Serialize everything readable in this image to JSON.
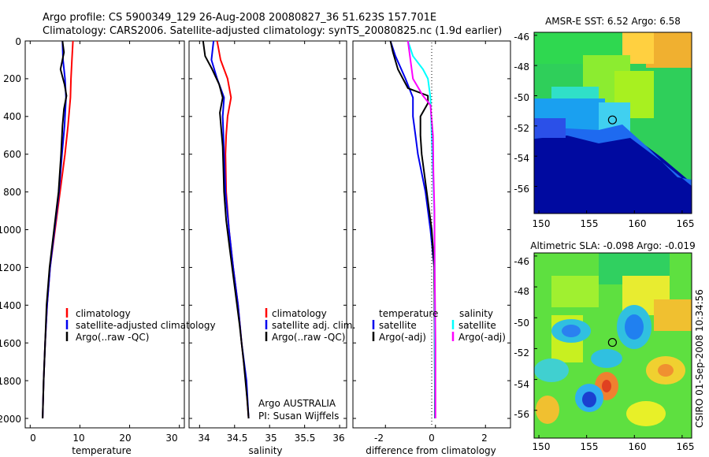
{
  "header": {
    "line1": "Argo profile: CS 5900349_129 26-Aug-2008 20080827_36 51.623S 157.701E",
    "line2": "Climatology: CARS2006. Satellite-adjusted climatology: synTS_20080825.nc (1.9d earlier)"
  },
  "footer_stamp": "CSIRO 01-Sep-2008 10:34:56",
  "colors": {
    "red": "#ff0000",
    "blue": "#0000ee",
    "black": "#000000",
    "cyan": "#00ffff",
    "magenta": "#ff00ff"
  },
  "chart_data": [
    {
      "type": "line",
      "xlabel": "temperature",
      "xlim": [
        -1,
        31
      ],
      "ylim": [
        2050,
        0
      ],
      "xticks": [
        "0",
        "10",
        "20",
        "30"
      ],
      "yticks": [
        "0",
        "200",
        "400",
        "600",
        "800",
        "1000",
        "1200",
        "1400",
        "1600",
        "1800",
        "2000"
      ],
      "legend": [
        "climatology",
        "satellite-adjusted climatology",
        "Argo(..raw -QC)"
      ],
      "series": [
        {
          "name": "climatology",
          "color": "red",
          "points": [
            [
              8.6,
              0
            ],
            [
              8.4,
              100
            ],
            [
              8.2,
              200
            ],
            [
              8.1,
              300
            ],
            [
              7.6,
              450
            ],
            [
              7.0,
              600
            ],
            [
              6.0,
              800
            ],
            [
              5.0,
              1000
            ],
            [
              4.0,
              1200
            ],
            [
              3.4,
              1400
            ],
            [
              3.0,
              1600
            ],
            [
              2.7,
              1800
            ],
            [
              2.5,
              2000
            ]
          ]
        },
        {
          "name": "satellite-adjusted climatology",
          "color": "blue",
          "points": [
            [
              6.5,
              0
            ],
            [
              6.6,
              100
            ],
            [
              7.0,
              200
            ],
            [
              7.2,
              300
            ],
            [
              6.9,
              450
            ],
            [
              6.4,
              600
            ],
            [
              5.8,
              800
            ],
            [
              4.9,
              1000
            ],
            [
              4.0,
              1200
            ],
            [
              3.4,
              1400
            ],
            [
              3.0,
              1600
            ],
            [
              2.7,
              1800
            ],
            [
              2.5,
              2000
            ]
          ]
        },
        {
          "name": "Argo(..raw -QC)",
          "color": "black",
          "points": [
            [
              6.5,
              0
            ],
            [
              6.8,
              60
            ],
            [
              6.1,
              150
            ],
            [
              6.9,
              230
            ],
            [
              7.3,
              290
            ],
            [
              6.8,
              360
            ],
            [
              6.5,
              450
            ],
            [
              6.2,
              600
            ],
            [
              5.7,
              800
            ],
            [
              4.8,
              1000
            ],
            [
              3.9,
              1200
            ],
            [
              3.3,
              1400
            ],
            [
              3.0,
              1600
            ],
            [
              2.7,
              1800
            ],
            [
              2.5,
              2000
            ]
          ]
        }
      ]
    },
    {
      "type": "line",
      "xlabel": "salinity",
      "xlim": [
        33.85,
        36.1
      ],
      "ylim": [
        2050,
        0
      ],
      "xticks": [
        "34",
        "34.5",
        "35",
        "35.5",
        "36"
      ],
      "legend": [
        "climatology",
        "satellite adj. clim.",
        "Argo(..raw -QC)"
      ],
      "annotation": [
        "Argo AUSTRALIA",
        "PI: Susan Wijffels"
      ],
      "series": [
        {
          "name": "climatology",
          "color": "red",
          "points": [
            [
              34.25,
              0
            ],
            [
              34.3,
              100
            ],
            [
              34.4,
              200
            ],
            [
              34.45,
              300
            ],
            [
              34.4,
              400
            ],
            [
              34.38,
              500
            ],
            [
              34.37,
              600
            ],
            [
              34.38,
              800
            ],
            [
              34.42,
              1000
            ],
            [
              34.48,
              1200
            ],
            [
              34.55,
              1400
            ],
            [
              34.6,
              1600
            ],
            [
              34.66,
              1800
            ],
            [
              34.7,
              2000
            ]
          ]
        },
        {
          "name": "satellite adj. clim.",
          "color": "blue",
          "points": [
            [
              34.2,
              0
            ],
            [
              34.17,
              100
            ],
            [
              34.25,
              200
            ],
            [
              34.35,
              300
            ],
            [
              34.33,
              400
            ],
            [
              34.34,
              500
            ],
            [
              34.35,
              600
            ],
            [
              34.37,
              800
            ],
            [
              34.42,
              1000
            ],
            [
              34.48,
              1200
            ],
            [
              34.55,
              1400
            ],
            [
              34.6,
              1600
            ],
            [
              34.67,
              1800
            ],
            [
              34.7,
              2000
            ]
          ]
        },
        {
          "name": "Argo(..raw -QC)",
          "color": "black",
          "points": [
            [
              34.05,
              0
            ],
            [
              34.08,
              80
            ],
            [
              34.18,
              150
            ],
            [
              34.28,
              230
            ],
            [
              34.33,
              300
            ],
            [
              34.29,
              380
            ],
            [
              34.31,
              470
            ],
            [
              34.33,
              560
            ],
            [
              34.34,
              680
            ],
            [
              34.35,
              800
            ],
            [
              34.38,
              950
            ],
            [
              34.43,
              1100
            ],
            [
              34.5,
              1300
            ],
            [
              34.57,
              1500
            ],
            [
              34.63,
              1700
            ],
            [
              34.68,
              1900
            ],
            [
              34.7,
              2000
            ]
          ]
        }
      ]
    },
    {
      "type": "line",
      "xlabel": "difference from climatology",
      "xlim": [
        -3.3,
        3.0
      ],
      "ylim": [
        2050,
        0
      ],
      "xticks": [
        "-2",
        "0",
        "2"
      ],
      "legend_temperature_title": "temperature",
      "legend_salinity_title": "salinity",
      "legend_temperature": [
        "satellite",
        "Argo(-adj)"
      ],
      "legend_salinity": [
        "satellite",
        "Argo(-adj)"
      ],
      "series": [
        {
          "name": "temperature satellite",
          "color": "blue",
          "points": [
            [
              -1.8,
              0
            ],
            [
              -1.6,
              80
            ],
            [
              -1.2,
              200
            ],
            [
              -0.9,
              300
            ],
            [
              -0.9,
              400
            ],
            [
              -0.8,
              500
            ],
            [
              -0.7,
              600
            ],
            [
              -0.4,
              800
            ],
            [
              -0.2,
              1000
            ],
            [
              -0.05,
              1200
            ],
            [
              -0.03,
              1500
            ],
            [
              -0.02,
              2000
            ]
          ]
        },
        {
          "name": "temperature Argo(-adj)",
          "color": "black",
          "points": [
            [
              -1.8,
              0
            ],
            [
              -1.7,
              60
            ],
            [
              -1.5,
              150
            ],
            [
              -1.1,
              250
            ],
            [
              -0.3,
              290
            ],
            [
              -0.3,
              330
            ],
            [
              -0.6,
              400
            ],
            [
              -0.6,
              500
            ],
            [
              -0.55,
              600
            ],
            [
              -0.35,
              800
            ],
            [
              -0.15,
              1000
            ],
            [
              -0.05,
              1200
            ],
            [
              -0.03,
              1500
            ],
            [
              -0.02,
              2000
            ]
          ]
        },
        {
          "name": "salinity satellite",
          "color": "cyan",
          "points": [
            [
              -1.1,
              0
            ],
            [
              -0.9,
              80
            ],
            [
              -0.5,
              150
            ],
            [
              -0.3,
              200
            ],
            [
              -0.2,
              300
            ],
            [
              -0.15,
              500
            ],
            [
              -0.1,
              700
            ],
            [
              -0.05,
              900
            ],
            [
              -0.03,
              1200
            ],
            [
              -0.02,
              1600
            ],
            [
              -0.01,
              2000
            ]
          ]
        },
        {
          "name": "salinity Argo(-adj)",
          "color": "magenta",
          "points": [
            [
              -1.1,
              0
            ],
            [
              -1.0,
              100
            ],
            [
              -0.9,
              200
            ],
            [
              -0.5,
              290
            ],
            [
              -0.2,
              340
            ],
            [
              -0.1,
              500
            ],
            [
              -0.08,
              700
            ],
            [
              -0.04,
              900
            ],
            [
              -0.03,
              1200
            ],
            [
              0.0,
              1600
            ],
            [
              0.0,
              2000
            ]
          ]
        }
      ]
    },
    {
      "type": "heatmap",
      "title": "AMSR-E SST: 6.52  Argo: 6.58",
      "xlim": [
        149.5,
        166
      ],
      "ylim": [
        -57.8,
        -45.8
      ],
      "xticks": [
        "150",
        "155",
        "160",
        "165"
      ],
      "yticks": [
        "-46",
        "-48",
        "-50",
        "-52",
        "-54",
        "-56"
      ],
      "marker": [
        157.7,
        -51.6
      ]
    },
    {
      "type": "heatmap",
      "title": "Altimetric SLA: -0.098  Argo: -0.019",
      "xlim": [
        149.5,
        166
      ],
      "ylim": [
        -57.8,
        -45.8
      ],
      "xticks": [
        "150",
        "155",
        "160",
        "165"
      ],
      "yticks": [
        "-46",
        "-48",
        "-50",
        "-52",
        "-54",
        "-56"
      ],
      "marker": [
        157.7,
        -51.6
      ]
    }
  ]
}
